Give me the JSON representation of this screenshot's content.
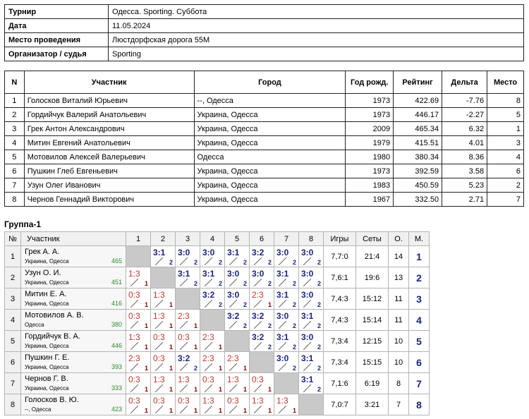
{
  "info": [
    {
      "label": "Турнир",
      "value": "Одесса. Sporting. Суббота"
    },
    {
      "label": "Дата",
      "value": "11.05.2024"
    },
    {
      "label": "Место проведения",
      "value": "Люстдорфская дорога 55М"
    },
    {
      "label": "Организатор / судья",
      "value": "Sporting"
    }
  ],
  "participants": {
    "headers": [
      "N",
      "Участник",
      "Город",
      "Год рожд.",
      "Рейтинг",
      "Дельта",
      "Место"
    ],
    "rows": [
      [
        "1",
        "Голосков Виталий Юрьевич",
        "--, Одесса",
        "1973",
        "422.69",
        "-7.76",
        "8"
      ],
      [
        "2",
        "Гордийчук Валерий Анатольевич",
        "Украина, Одесса",
        "1973",
        "446.17",
        "-2.27",
        "5"
      ],
      [
        "3",
        "Грек Антон Александрович",
        "Украина, Одесса",
        "2009",
        "465.34",
        "6.32",
        "1"
      ],
      [
        "4",
        "Митин Евгений Анатольевич",
        "Украина, Одесса",
        "1979",
        "415.51",
        "4.01",
        "3"
      ],
      [
        "5",
        "Мотовилов Алексей Валерьевич",
        "Одесса",
        "1980",
        "380.34",
        "8.36",
        "4"
      ],
      [
        "6",
        "Пушкин Глеб Евгеньевич",
        "Украина, Одесса",
        "1973",
        "392.59",
        "3.58",
        "6"
      ],
      [
        "7",
        "Узун Олег Иванович",
        "Украина, Одесса",
        "1983",
        "450.59",
        "5.23",
        "2"
      ],
      [
        "8",
        "Чернов Геннадий Викторович",
        "Украина, Одесса",
        "1967",
        "332.50",
        "2.71",
        "7"
      ]
    ]
  },
  "group": {
    "title": "Группа-1",
    "headers": {
      "n": "№",
      "player": "Участник",
      "cols": [
        "1",
        "2",
        "3",
        "4",
        "5",
        "6",
        "7",
        "8"
      ],
      "games": "Игры",
      "sets": "Сеты",
      "o": "О.",
      "m": "М."
    },
    "rows": [
      {
        "num": "1",
        "name": "Грек А. А.",
        "city": "Украина, Одесса",
        "rating": "465",
        "results": [
          null,
          [
            "3:1",
            "2"
          ],
          [
            "3:0",
            "2"
          ],
          [
            "3:0",
            "2"
          ],
          [
            "3:1",
            "2"
          ],
          [
            "3:2",
            "2"
          ],
          [
            "3:0",
            "2"
          ],
          [
            "3:0",
            "2"
          ]
        ],
        "games": "7,7:0",
        "sets": "21:4",
        "o": "14",
        "m": "1"
      },
      {
        "num": "2",
        "name": "Узун О. И.",
        "city": "Украина, Одесса",
        "rating": "451",
        "results": [
          [
            "1:3",
            "1"
          ],
          null,
          [
            "3:1",
            "2"
          ],
          [
            "3:1",
            "2"
          ],
          [
            "3:0",
            "2"
          ],
          [
            "3:0",
            "2"
          ],
          [
            "3:1",
            "2"
          ],
          [
            "3:0",
            "2"
          ]
        ],
        "games": "7,6:1",
        "sets": "19:6",
        "o": "13",
        "m": "2"
      },
      {
        "num": "3",
        "name": "Митин Е. А.",
        "city": "Украина, Одесса",
        "rating": "416",
        "results": [
          [
            "0:3",
            "1"
          ],
          [
            "1:3",
            "1"
          ],
          null,
          [
            "3:2",
            "2"
          ],
          [
            "3:0",
            "2"
          ],
          [
            "2:3",
            "1"
          ],
          [
            "3:1",
            "2"
          ],
          [
            "3:0",
            "2"
          ]
        ],
        "games": "7,4:3",
        "sets": "15:12",
        "o": "11",
        "m": "3"
      },
      {
        "num": "4",
        "name": "Мотовилов А. В.",
        "city": "Одесса",
        "rating": "380",
        "results": [
          [
            "0:3",
            "1"
          ],
          [
            "1:3",
            "1"
          ],
          [
            "2:3",
            "1"
          ],
          null,
          [
            "3:2",
            "2"
          ],
          [
            "3:2",
            "2"
          ],
          [
            "3:0",
            "2"
          ],
          [
            "3:1",
            "2"
          ]
        ],
        "games": "7,4:3",
        "sets": "15:14",
        "o": "11",
        "m": "4"
      },
      {
        "num": "5",
        "name": "Гордийчук В. А.",
        "city": "Украина, Одесса",
        "rating": "446",
        "results": [
          [
            "1:3",
            "1"
          ],
          [
            "0:3",
            "1"
          ],
          [
            "0:3",
            "1"
          ],
          [
            "2:3",
            "1"
          ],
          null,
          [
            "3:2",
            "2"
          ],
          [
            "3:1",
            "2"
          ],
          [
            "3:0",
            "2"
          ]
        ],
        "games": "7,3:4",
        "sets": "12:15",
        "o": "10",
        "m": "5"
      },
      {
        "num": "6",
        "name": "Пушкин Г. Е.",
        "city": "Украина, Одесса",
        "rating": "393",
        "results": [
          [
            "2:3",
            "1"
          ],
          [
            "0:3",
            "1"
          ],
          [
            "3:2",
            "2"
          ],
          [
            "2:3",
            "1"
          ],
          [
            "2:3",
            "1"
          ],
          null,
          [
            "3:0",
            "2"
          ],
          [
            "3:1",
            "2"
          ]
        ],
        "games": "7,3:4",
        "sets": "15:15",
        "o": "10",
        "m": "6"
      },
      {
        "num": "7",
        "name": "Чернов Г. В.",
        "city": "Украина, Одесса",
        "rating": "333",
        "results": [
          [
            "0:3",
            "1"
          ],
          [
            "1:3",
            "1"
          ],
          [
            "1:3",
            "1"
          ],
          [
            "0:3",
            "1"
          ],
          [
            "1:3",
            "1"
          ],
          [
            "0:3",
            "1"
          ],
          null,
          [
            "3:1",
            "2"
          ]
        ],
        "games": "7,1:6",
        "sets": "6:19",
        "o": "8",
        "m": "7"
      },
      {
        "num": "8",
        "name": "Голосков В. Ю.",
        "city": "--, Одесса",
        "rating": "423",
        "results": [
          [
            "0:3",
            "1"
          ],
          [
            "0:3",
            "1"
          ],
          [
            "0:3",
            "1"
          ],
          [
            "1:3",
            "1"
          ],
          [
            "0:3",
            "1"
          ],
          [
            "1:3",
            "1"
          ],
          [
            "1:3",
            "1"
          ],
          null
        ],
        "games": "7,0:7",
        "sets": "3:21",
        "o": "7",
        "m": "8"
      }
    ]
  }
}
